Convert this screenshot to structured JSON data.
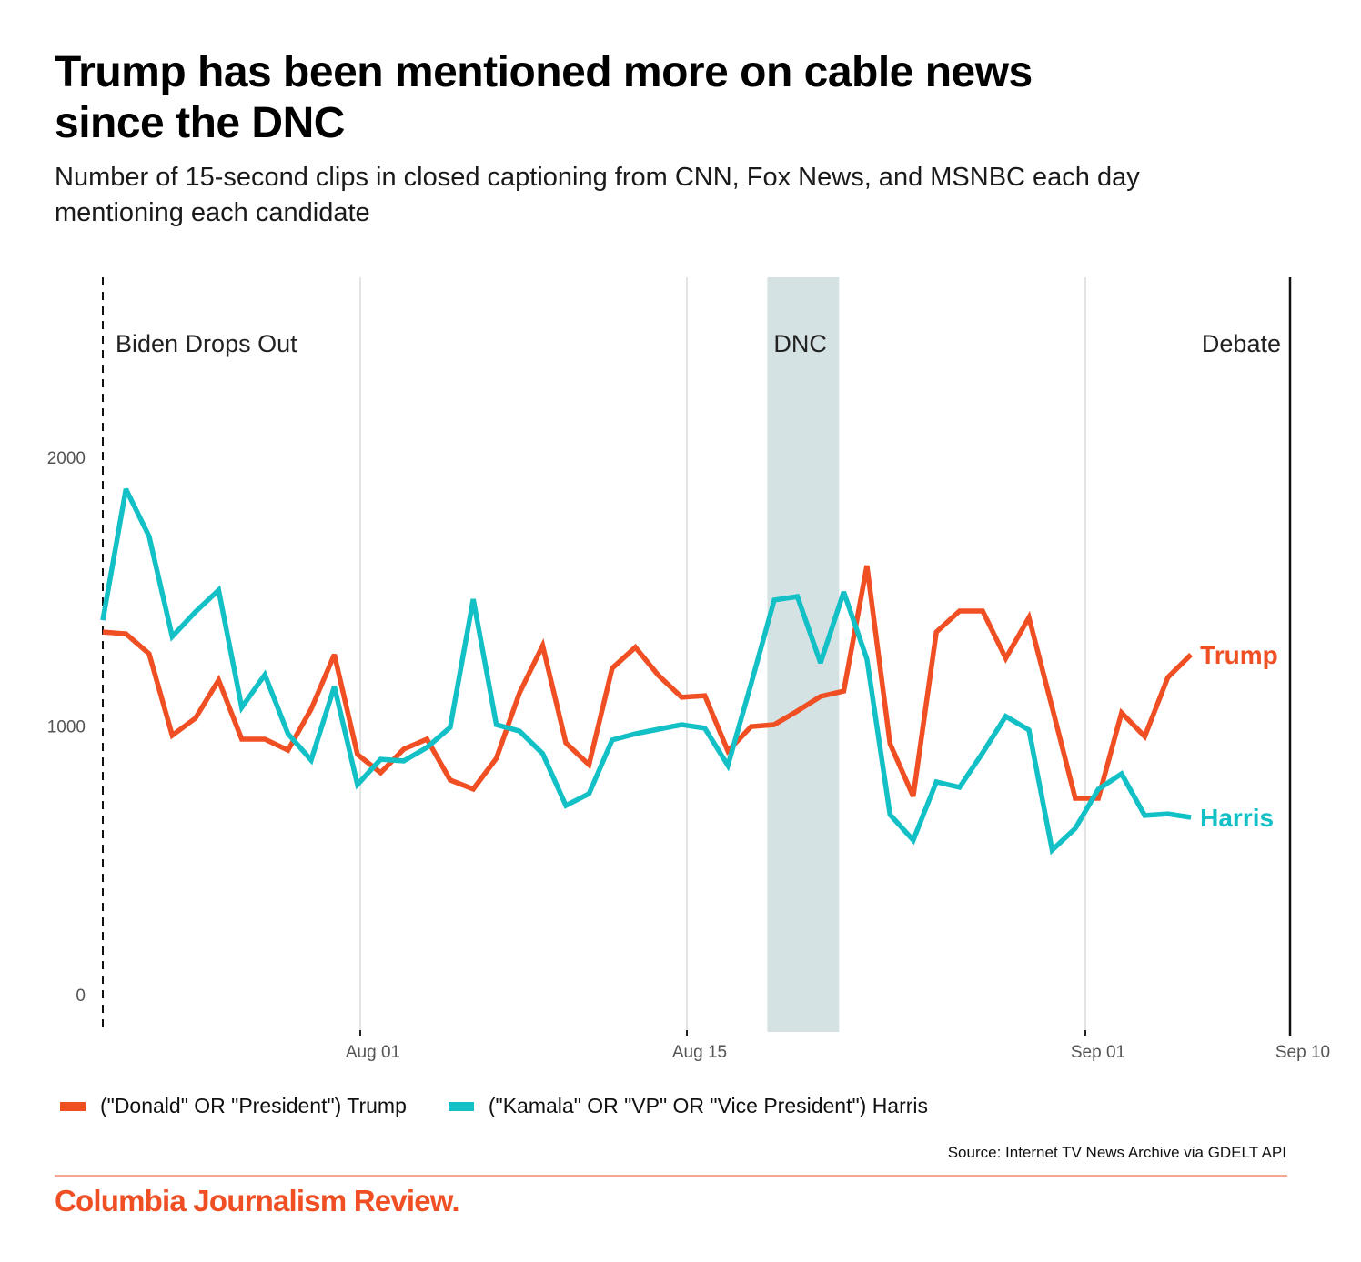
{
  "header": {
    "title": "Trump has been mentioned more on cable news since the DNC",
    "subtitle": "Number of 15-second clips in closed captioning from CNN, Fox News, and MSNBC each day mentioning each candidate"
  },
  "colors": {
    "trump": "#f04e23",
    "harris": "#12c0c5",
    "dnc_band": "#d5e2e3",
    "brand": "#f04e23",
    "gridline": "#e4e4e4"
  },
  "legend": [
    {
      "label": "(\"Donald\" OR \"President\") Trump",
      "series": "trump"
    },
    {
      "label": "(\"Kamala\" OR \"VP\" OR \"Vice President\") Harris",
      "series": "harris"
    }
  ],
  "footer": {
    "source": "Source: Internet TV News Archive via GDELT API",
    "brand": "Columbia Journalism Review."
  },
  "chart_data": {
    "type": "line",
    "title": "Trump has been mentioned more on cable news since the DNC",
    "subtitle": "Number of 15-second clips in closed captioning from CNN, Fox News, and MSNBC each day mentioning each candidate",
    "xlabel": "",
    "ylabel": "",
    "x_start": "2024-07-21",
    "x_range": [
      "2024-07-21",
      "2024-09-10"
    ],
    "ylim": [
      0,
      2000
    ],
    "y_ticks": [
      0,
      1000,
      2000
    ],
    "x_ticks": [
      {
        "label": "Aug 01",
        "day": 11
      },
      {
        "label": "Aug 15",
        "day": 25
      },
      {
        "label": "Sep 01",
        "day": 42
      },
      {
        "label": "Sep 10",
        "day": 51
      }
    ],
    "grid": "vertical",
    "annotations": [
      {
        "label": "Biden Drops Out",
        "type": "dashed-line",
        "day": 0
      },
      {
        "label": "DNC",
        "type": "band",
        "day_start": 28.7,
        "day_end": 31.8
      },
      {
        "label": "Debate",
        "type": "solid-line",
        "day": 51
      }
    ],
    "series": [
      {
        "name": "(\"Donald\" OR \"President\") Trump",
        "end_label": "Trump",
        "key": "trump",
        "values": [
          1350,
          1343,
          1269,
          965,
          1029,
          1171,
          951,
          951,
          910,
          1063,
          1266,
          894,
          826,
          914,
          951,
          799,
          765,
          880,
          1124,
          1299,
          937,
          856,
          1215,
          1293,
          1188,
          1107,
          1113,
          907,
          998,
          1005,
          1056,
          1110,
          1130,
          1597,
          934,
          738,
          1350,
          1428,
          1428,
          1252,
          1404,
          1069,
          731,
          731,
          1049,
          961,
          1181,
          1266
        ]
      },
      {
        "name": "(\"Kamala\" OR \"VP\" OR \"Vice President\") Harris",
        "end_label": "Harris",
        "key": "harris",
        "values": [
          1394,
          1882,
          1706,
          1333,
          1425,
          1506,
          1069,
          1191,
          971,
          873,
          1147,
          782,
          876,
          870,
          920,
          995,
          1472,
          1005,
          981,
          897,
          704,
          748,
          948,
          971,
          988,
          1005,
          992,
          853,
          1157,
          1469,
          1482,
          1235,
          1499,
          1249,
          670,
          575,
          792,
          772,
          900,
          1036,
          985,
          538,
          619,
          765,
          822,
          667,
          673,
          660
        ]
      }
    ],
    "legend_position": "bottom-left"
  }
}
